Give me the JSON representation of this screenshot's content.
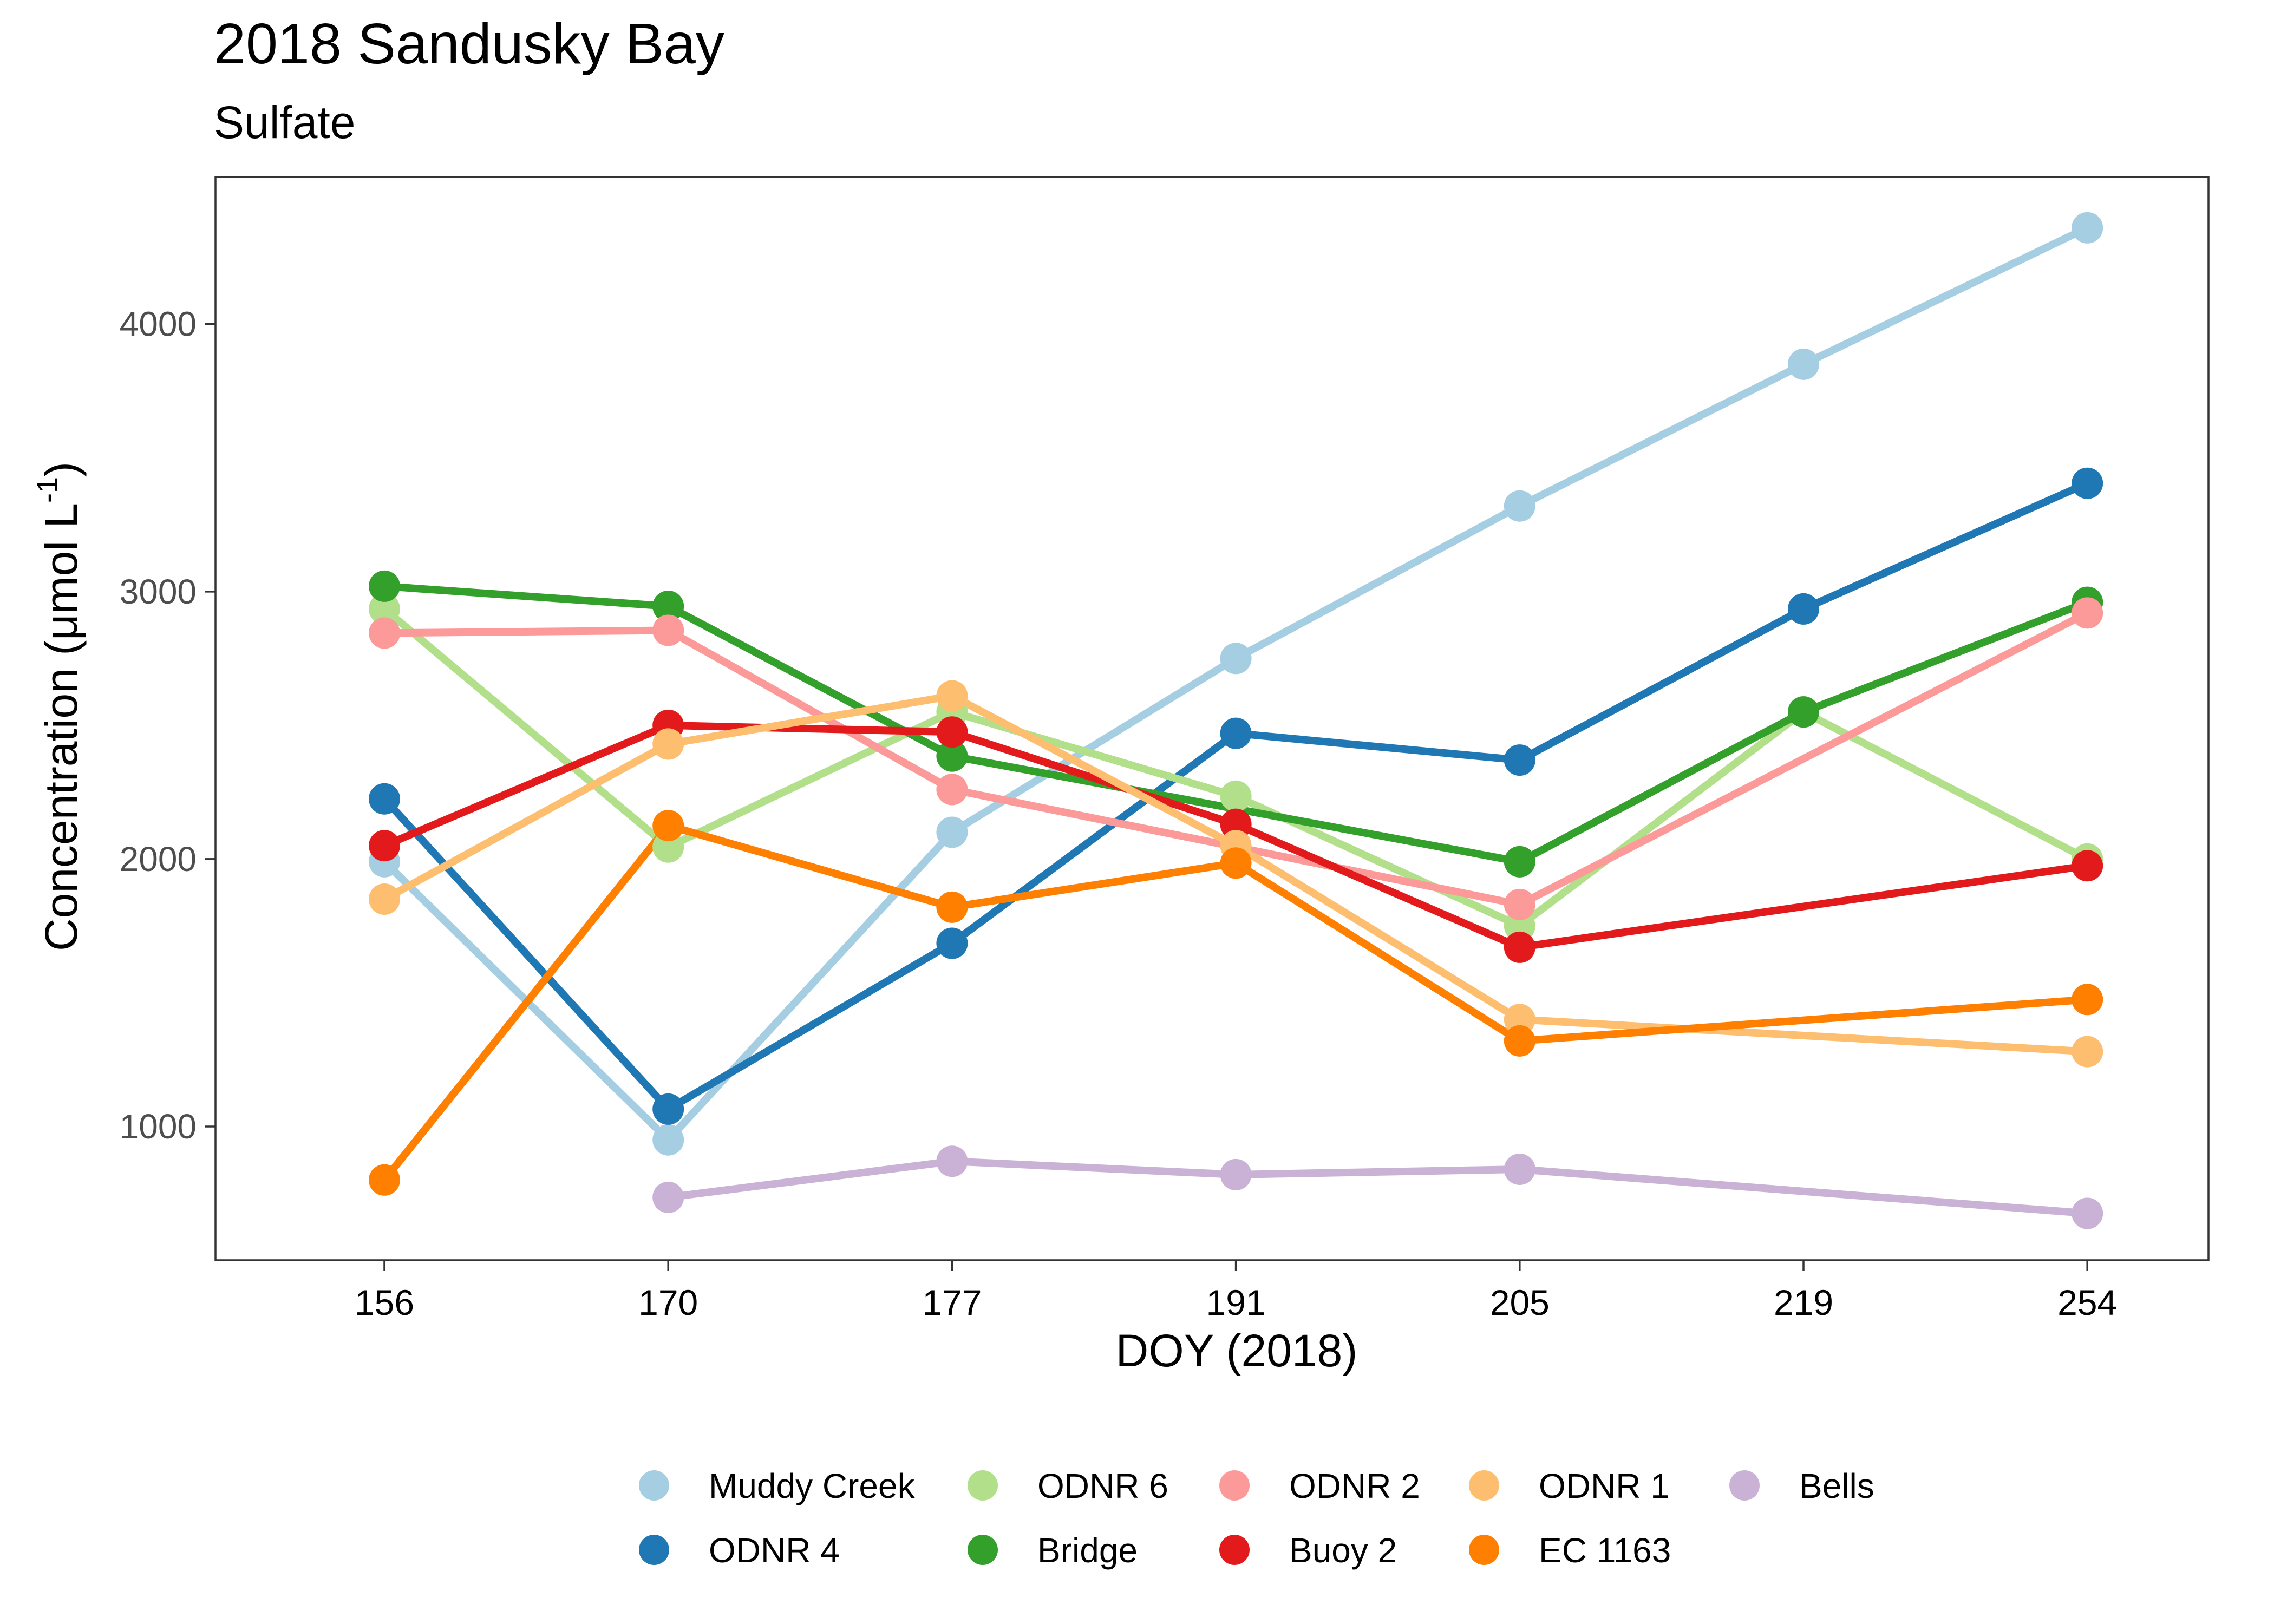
{
  "chart_data": {
    "type": "line",
    "title": "2018 Sandusky Bay",
    "subtitle": "Sulfate",
    "xlabel": "DOY (2018)",
    "ylabel": {
      "main": "Concentration (μmol L",
      "superscript": "-1",
      "close": ")"
    },
    "categories": [
      "156",
      "170",
      "177",
      "191",
      "205",
      "219",
      "254"
    ],
    "ylim": [
      500,
      4550
    ],
    "yticks": [
      1000,
      2000,
      3000,
      4000
    ],
    "grid": false,
    "legend_position": "bottom",
    "series": [
      {
        "name": "Muddy Creek",
        "color": "#A6CEE3",
        "values": [
          1990,
          950,
          2100,
          2750,
          3320,
          3850,
          4360
        ]
      },
      {
        "name": "ODNR 4",
        "color": "#1F78B4",
        "values": [
          2225,
          1065,
          1685,
          2470,
          2370,
          2935,
          3405
        ]
      },
      {
        "name": "ODNR 6",
        "color": "#B2DF8A",
        "values": [
          2935,
          2045,
          2550,
          2235,
          1750,
          2550,
          2000
        ]
      },
      {
        "name": "Bridge",
        "color": "#33A02C",
        "values": [
          3020,
          2945,
          2385,
          null,
          1990,
          2550,
          2960
        ]
      },
      {
        "name": "ODNR 2",
        "color": "#FB9A99",
        "values": [
          2845,
          2855,
          2260,
          null,
          1830,
          null,
          2920
        ]
      },
      {
        "name": "Buoy 2",
        "color": "#E31A1C",
        "values": [
          2050,
          2500,
          2475,
          2130,
          1670,
          null,
          1975
        ]
      },
      {
        "name": "ODNR 1",
        "color": "#FDBF6F",
        "values": [
          1850,
          2430,
          2610,
          2050,
          1400,
          null,
          1280
        ]
      },
      {
        "name": "EC 1163",
        "color": "#FF7F00",
        "values": [
          800,
          2125,
          1820,
          1985,
          1320,
          null,
          1475
        ]
      },
      {
        "name": "Bells",
        "color": "#CAB2D6",
        "values": [
          null,
          735,
          870,
          820,
          840,
          null,
          675
        ]
      }
    ]
  }
}
